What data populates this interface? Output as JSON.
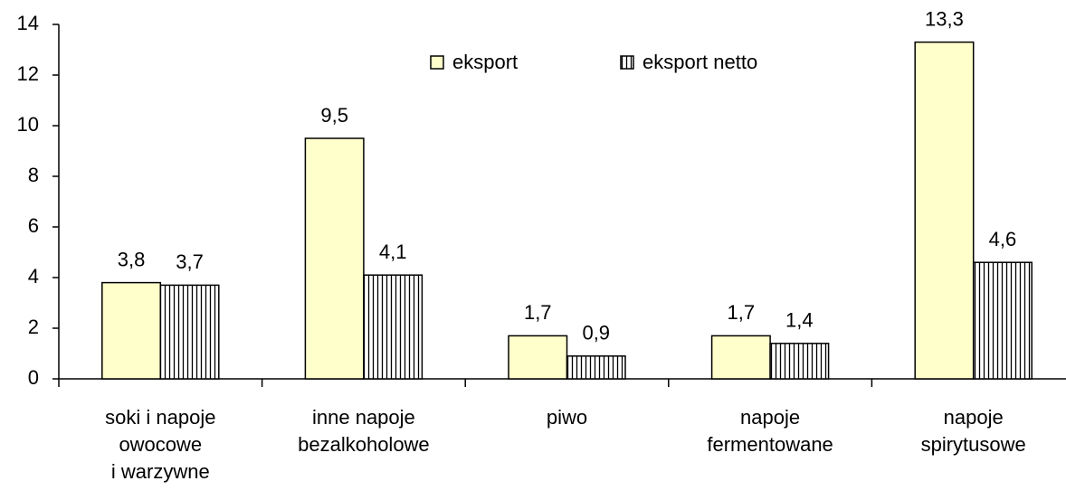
{
  "chart_data": {
    "type": "bar",
    "categories": [
      [
        "soki i napoje",
        "owocowe",
        "i warzywne"
      ],
      [
        "inne napoje",
        "bezalkoholowe"
      ],
      [
        "piwo"
      ],
      [
        "napoje",
        "fermentowane"
      ],
      [
        "napoje",
        "spirytusowe"
      ]
    ],
    "series": [
      {
        "name": "eksport",
        "color": "#ffffcc",
        "values": [
          3.8,
          9.5,
          1.7,
          1.7,
          13.3
        ],
        "value_labels": [
          "3,8",
          "9,5",
          "1,7",
          "1,7",
          "13,3"
        ]
      },
      {
        "name": "eksport netto",
        "color": "#ffffff",
        "pattern": "vertical-lines",
        "values": [
          3.7,
          4.1,
          0.9,
          1.4,
          4.6
        ],
        "value_labels": [
          "3,7",
          "4,1",
          "0,9",
          "1,4",
          "4,6"
        ]
      }
    ],
    "ylim": [
      0,
      14
    ],
    "yticks": [
      0,
      2,
      4,
      6,
      8,
      10,
      12,
      14
    ],
    "grid": false,
    "legend": "top"
  }
}
